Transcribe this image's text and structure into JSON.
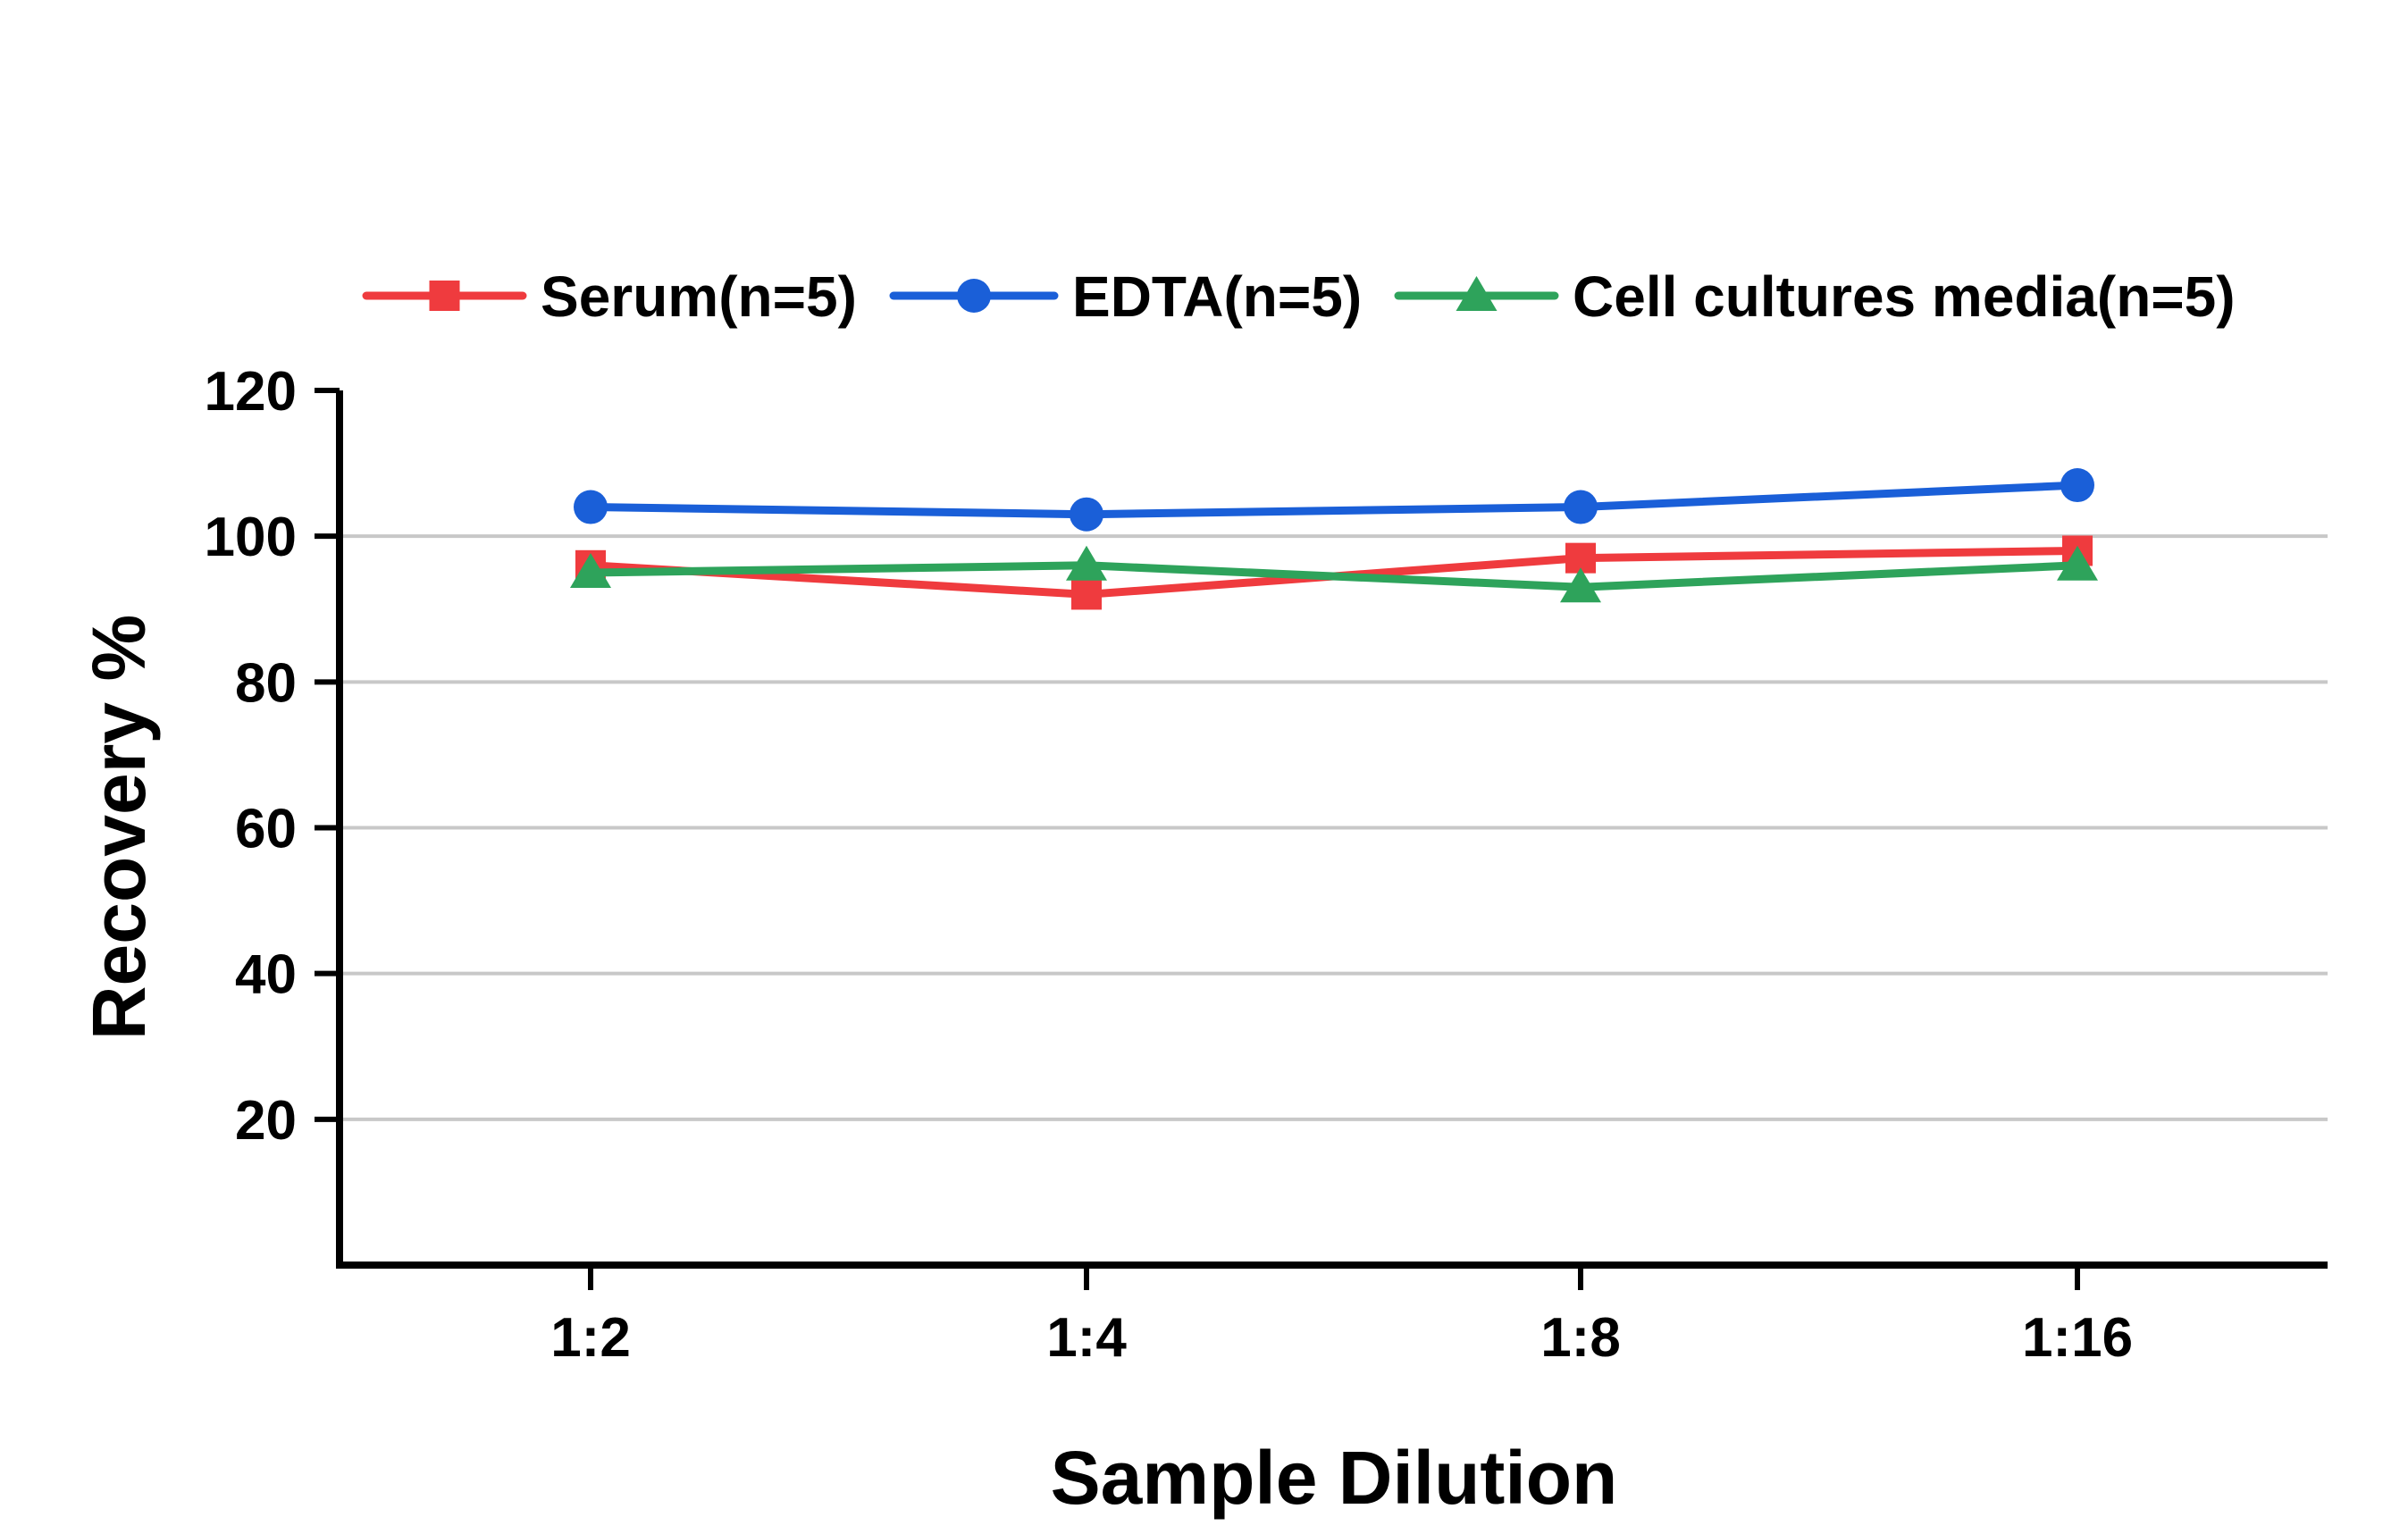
{
  "chart_data": {
    "type": "line",
    "title": "",
    "xlabel": "Sample Dilution",
    "ylabel": "Recovery %",
    "categories": [
      "1:2",
      "1:4",
      "1:8",
      "1:16"
    ],
    "ylim": [
      0,
      120
    ],
    "yticks": [
      20,
      40,
      60,
      80,
      100,
      120
    ],
    "grid": true,
    "legend_position": "top",
    "series": [
      {
        "name": "Serum(n=5)",
        "color": "#ef3b3e",
        "marker": "square",
        "values": [
          96,
          92,
          97,
          98
        ]
      },
      {
        "name": "EDTA(n=5)",
        "color": "#1a5fd8",
        "marker": "circle",
        "values": [
          104,
          103,
          104,
          107
        ]
      },
      {
        "name": "Cell cultures media(n=5)",
        "color": "#2ea35b",
        "marker": "triangle",
        "values": [
          95,
          96,
          93,
          96
        ]
      }
    ]
  }
}
